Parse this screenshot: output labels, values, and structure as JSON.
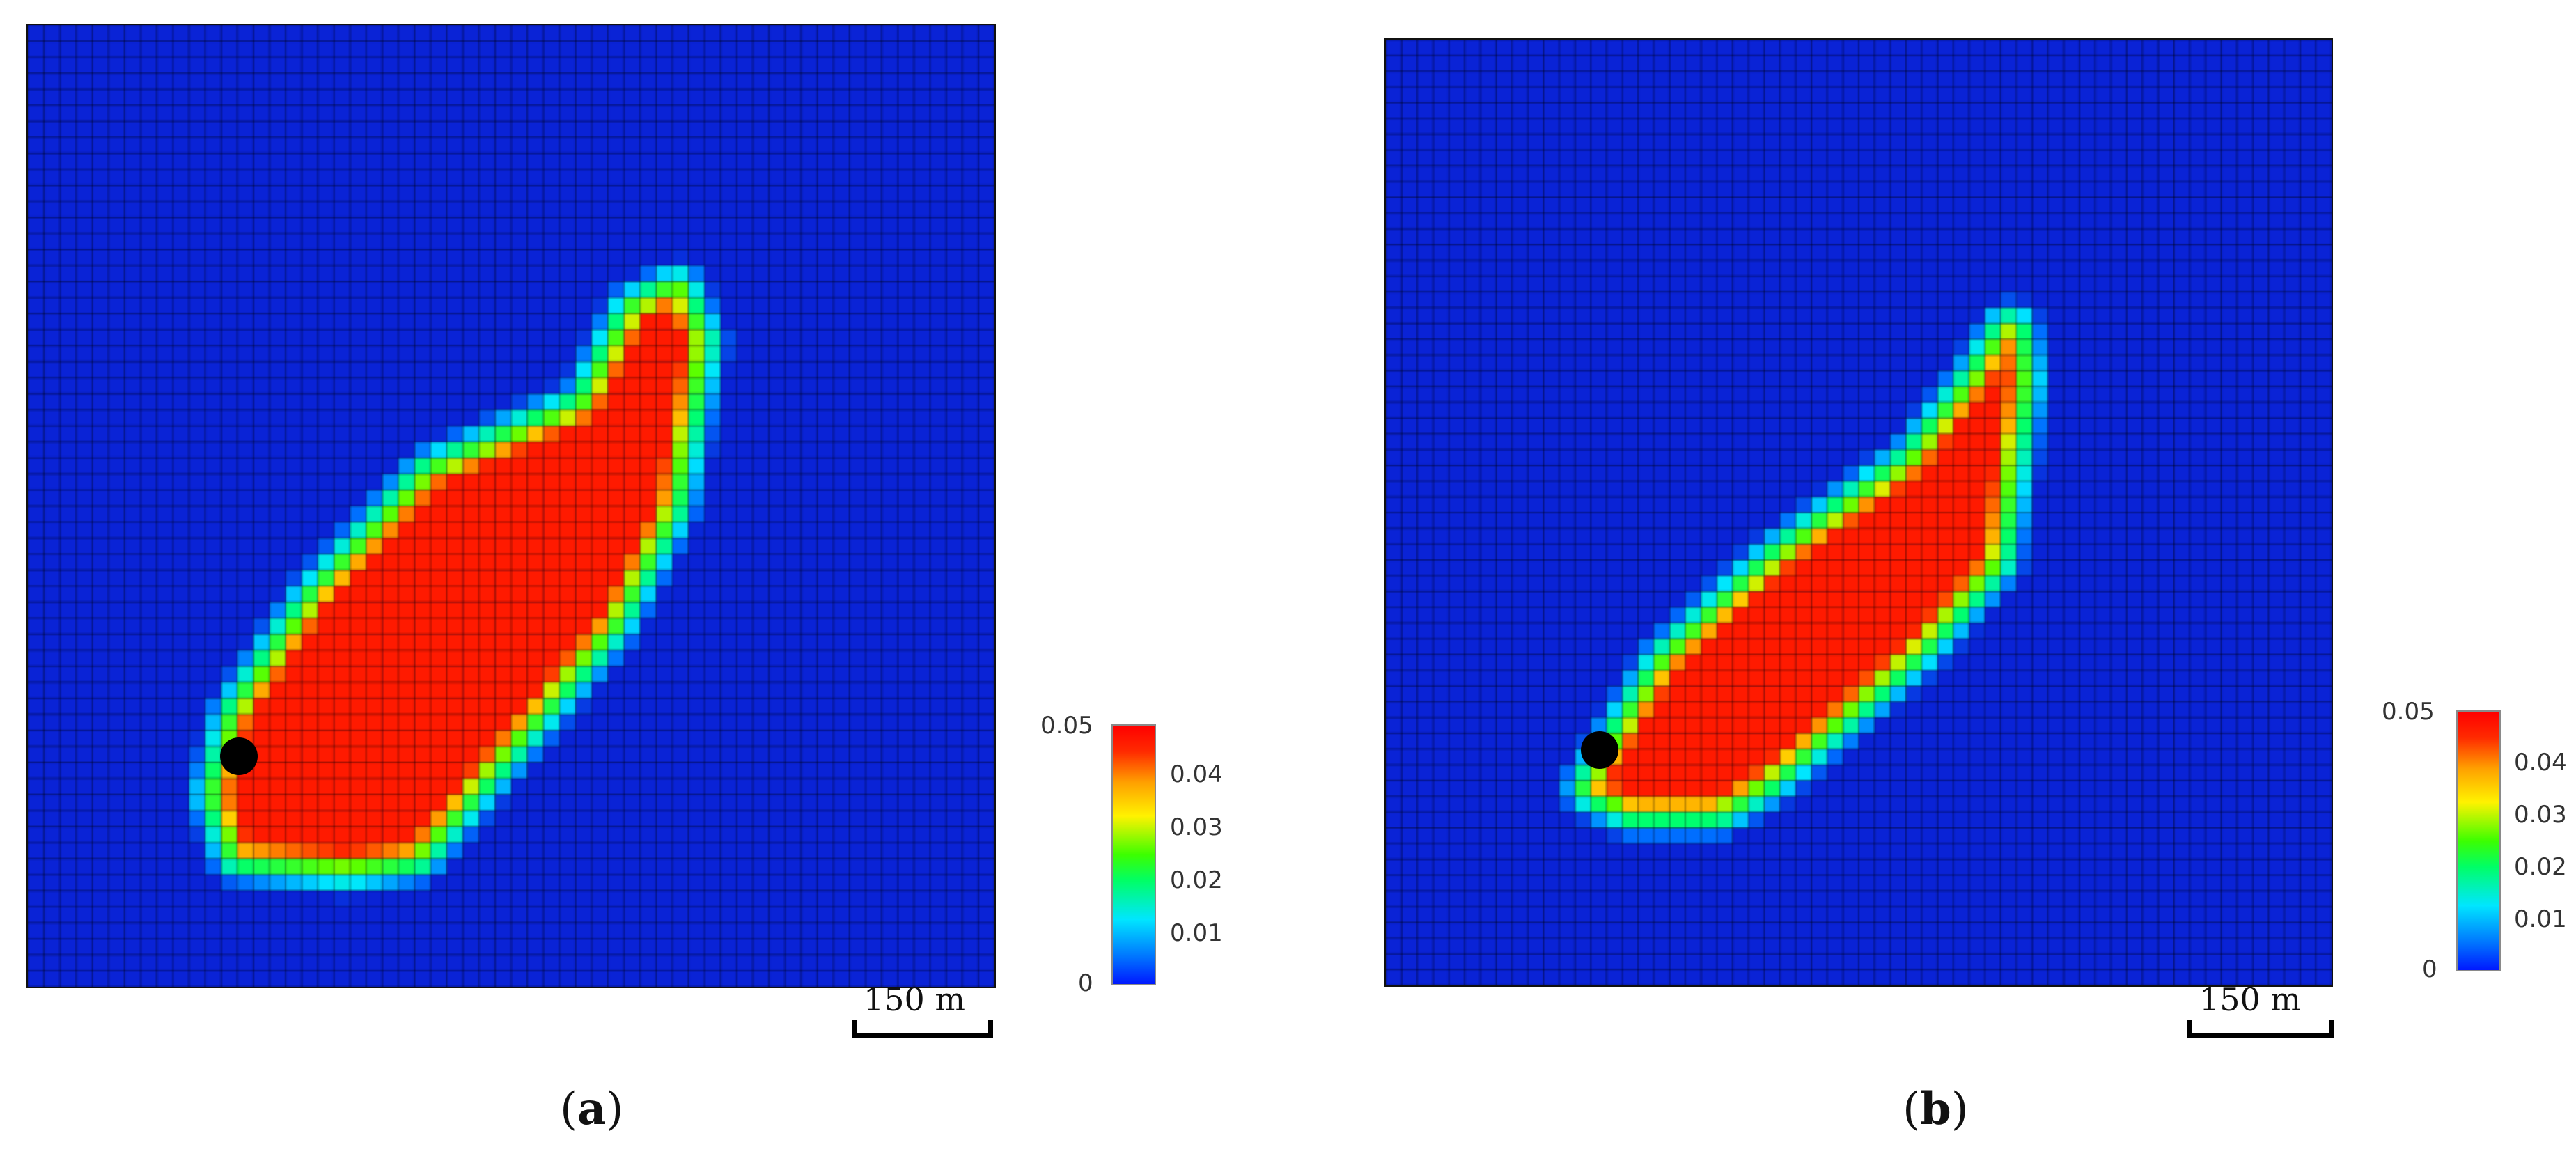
{
  "figure": {
    "panels": [
      {
        "id": "a",
        "label_open": "(",
        "label_letter": "a",
        "label_close": ")",
        "scale_label": "150 m",
        "colorbar": {
          "max_label": "0.05",
          "min_label": "0",
          "ticks": [
            "0.04",
            "0.03",
            "0.02",
            "0.01"
          ]
        }
      },
      {
        "id": "b",
        "label_open": "(",
        "label_letter": "b",
        "label_close": ")",
        "scale_label": "150 m",
        "colorbar": {
          "max_label": "0.05",
          "min_label": "0",
          "ticks": [
            "0.04",
            "0.03",
            "0.02",
            "0.01"
          ]
        }
      }
    ],
    "colors": {
      "background_field": "#0a23d6",
      "plume_core": "#ff1a00",
      "grid_lines": "#000000"
    }
  }
}
